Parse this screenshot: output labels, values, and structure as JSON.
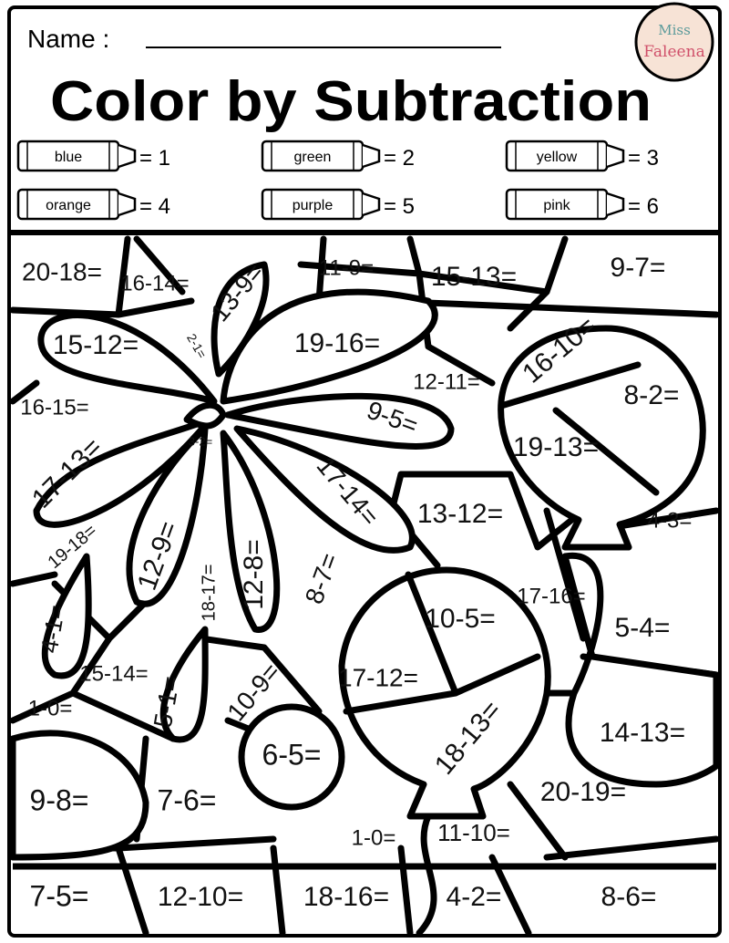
{
  "header": {
    "name_label": "Name :",
    "title": "Color by Subtraction",
    "logo_text": [
      "Miss",
      "Faleena"
    ]
  },
  "key": [
    {
      "crayon": "blue",
      "value": "= 1"
    },
    {
      "crayon": "green",
      "value": "= 2"
    },
    {
      "crayon": "yellow",
      "value": "= 3"
    },
    {
      "crayon": "orange",
      "value": "= 4"
    },
    {
      "crayon": "purple",
      "value": "= 5"
    },
    {
      "crayon": "pink",
      "value": "= 6"
    }
  ],
  "problems": [
    "20-18=",
    "16-14=",
    "13-9=",
    "11-9=",
    "15-13=",
    "9-7=",
    "15-12=",
    "2-1=",
    "19-16=",
    "16-10=",
    "12-11=",
    "8-2=",
    "16-15=",
    "9-5=",
    "3-2=",
    "19-13=",
    "17-13=",
    "17-14=",
    "13-12=",
    "4-3=",
    "19-18=",
    "12-9=",
    "18-17=",
    "12-8=",
    "8-7=",
    "17-16=",
    "4-1=",
    "10-5=",
    "5-4=",
    "15-14=",
    "5-1=",
    "10-9=",
    "17-12=",
    "1-0=",
    "18-13=",
    "14-13=",
    "6-5=",
    "9-8=",
    "7-6=",
    "20-19=",
    "1-0=",
    "11-10=",
    "7-5=",
    "12-10=",
    "18-16=",
    "4-2=",
    "8-6="
  ]
}
